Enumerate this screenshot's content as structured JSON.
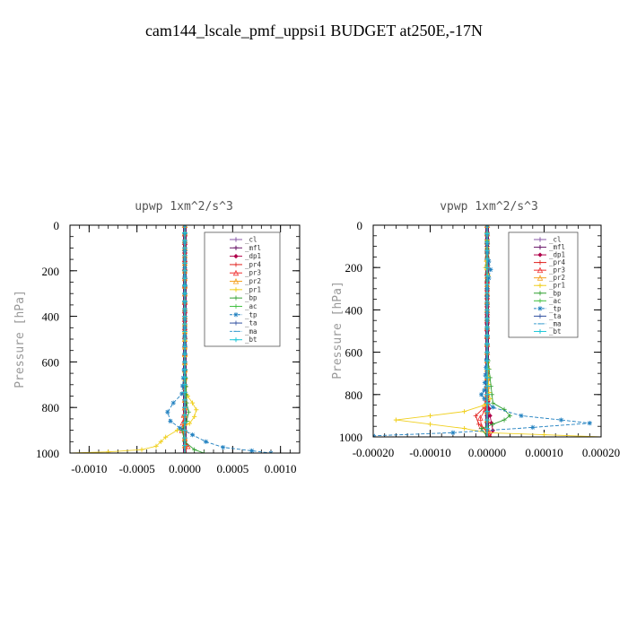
{
  "figure": {
    "title": "cam144_lscale_pmf_uppsi1  BUDGET at250E,-17N"
  },
  "chart_data": [
    {
      "type": "line",
      "title": "upwp   1xm^2/s^3",
      "ylabel": "Pressure [hPa]",
      "xlabel": "",
      "xlim": [
        -0.0012,
        0.0012
      ],
      "ylim": [
        1000,
        0
      ],
      "y_inverted": true,
      "xticks": [
        "-0.0010",
        "-0.0005",
        "0.0000",
        "0.0005",
        "0.0010"
      ],
      "xtick_values": [
        -0.001,
        -0.0005,
        0,
        0.0005,
        0.001
      ],
      "yticks": [
        "0",
        "200",
        "400",
        "600",
        "800",
        "1000"
      ],
      "ytick_values": [
        0,
        200,
        400,
        600,
        800,
        1000
      ],
      "legend": {
        "position": "top-right"
      },
      "series": [
        {
          "name": "_cl",
          "color": "#8a5aa8",
          "marker": "bar",
          "x": [
            0,
            0,
            0,
            0,
            0,
            0,
            0,
            0,
            0,
            0,
            0
          ],
          "y": [
            0,
            100,
            200,
            300,
            400,
            500,
            600,
            700,
            800,
            900,
            1000
          ]
        },
        {
          "name": "_mfl",
          "color": "#6b1a6b",
          "marker": "bar",
          "x": [
            0,
            0,
            0,
            0,
            0,
            0,
            0,
            0,
            0,
            0,
            0
          ],
          "y": [
            0,
            100,
            200,
            300,
            400,
            500,
            600,
            700,
            800,
            900,
            1000
          ]
        },
        {
          "name": "_dp1",
          "color": "#b0004a",
          "marker": "diamond",
          "x": [
            0,
            0,
            0,
            0,
            0,
            0,
            0,
            0,
            0,
            0,
            0
          ],
          "y": [
            0,
            100,
            200,
            300,
            400,
            500,
            600,
            700,
            800,
            900,
            1000
          ]
        },
        {
          "name": "_pr4",
          "color": "#e0201c",
          "marker": "plus",
          "x": [
            0,
            0,
            0,
            0,
            0,
            -2e-05,
            2e-05,
            0
          ],
          "y": [
            0,
            200,
            400,
            600,
            800,
            900,
            970,
            1000
          ]
        },
        {
          "name": "_pr3",
          "color": "#f03030",
          "marker": "tri",
          "x": [
            0,
            0,
            0,
            0,
            -3e-05,
            3e-05,
            0
          ],
          "y": [
            0,
            300,
            600,
            800,
            900,
            970,
            1000
          ]
        },
        {
          "name": "_pr2",
          "color": "#f4a020",
          "marker": "tri",
          "x": [
            0,
            0,
            0,
            0,
            0,
            0
          ],
          "y": [
            0,
            200,
            400,
            600,
            800,
            1000
          ]
        },
        {
          "name": "_pr1",
          "color": "#f0d020",
          "marker": "bar",
          "x": [
            0,
            0,
            0,
            0,
            3e-05,
            8e-05,
            0.00012,
            0.0001,
            5e-05,
            -8e-05,
            -0.0002,
            -0.00025,
            -0.0003,
            -0.00045,
            -0.0008,
            -0.0012
          ],
          "y": [
            0,
            200,
            400,
            720,
            750,
            780,
            810,
            840,
            870,
            900,
            930,
            950,
            970,
            985,
            995,
            1000
          ]
        },
        {
          "name": "_bp",
          "color": "#30a030",
          "marker": "plus",
          "x": [
            0,
            0,
            0,
            2e-05,
            4e-05,
            2e-05,
            -3e-05,
            0,
            0.0001,
            0.0002
          ],
          "y": [
            0,
            300,
            600,
            780,
            820,
            860,
            900,
            950,
            985,
            1000
          ]
        },
        {
          "name": "_ac",
          "color": "#40c040",
          "marker": "plus",
          "x": [
            0,
            0,
            0,
            0,
            0,
            0
          ],
          "y": [
            0,
            200,
            400,
            600,
            800,
            1000
          ]
        },
        {
          "name": "_tp",
          "color": "#2080c0",
          "marker": "star",
          "x": [
            0,
            0,
            0,
            -3e-05,
            -0.00012,
            -0.00018,
            -0.00015,
            -5e-05,
            8e-05,
            0.00022,
            0.0004,
            0.0007,
            0.0009
          ],
          "y": [
            0,
            300,
            600,
            740,
            780,
            820,
            860,
            890,
            920,
            950,
            975,
            990,
            1000
          ]
        },
        {
          "name": "_ta",
          "color": "#3050a0",
          "marker": "plus",
          "x": [
            0,
            0,
            0,
            0,
            0,
            0
          ],
          "y": [
            0,
            200,
            400,
            600,
            800,
            1000
          ]
        },
        {
          "name": "_ma",
          "color": "#40a0d0",
          "marker": "dash",
          "x": [
            0,
            0,
            0,
            0,
            0,
            0
          ],
          "y": [
            0,
            200,
            400,
            600,
            800,
            1000
          ]
        },
        {
          "name": "_bt",
          "color": "#20c8d8",
          "marker": "bar",
          "x": [
            0,
            0,
            0,
            0,
            0,
            0
          ],
          "y": [
            0,
            200,
            400,
            600,
            800,
            1000
          ]
        }
      ]
    },
    {
      "type": "line",
      "title": "vpwp   1xm^2/s^3",
      "ylabel": "Pressure [hPa]",
      "xlabel": "",
      "xlim": [
        -0.0002,
        0.0002
      ],
      "ylim": [
        1000,
        0
      ],
      "y_inverted": true,
      "xticks": [
        "-0.00020",
        "-0.00010",
        "0.00000",
        "0.00010",
        "0.00020"
      ],
      "xtick_values": [
        -0.0002,
        -0.0001,
        0,
        0.0001,
        0.0002
      ],
      "yticks": [
        "0",
        "200",
        "400",
        "600",
        "800",
        "1000"
      ],
      "ytick_values": [
        0,
        200,
        400,
        600,
        800,
        1000
      ],
      "legend": {
        "position": "top-right"
      },
      "series": [
        {
          "name": "_cl",
          "color": "#8a5aa8",
          "marker": "bar",
          "x": [
            0,
            0,
            0,
            0,
            0,
            0,
            0,
            0,
            0,
            0,
            0
          ],
          "y": [
            0,
            100,
            200,
            300,
            400,
            500,
            600,
            700,
            800,
            900,
            1000
          ]
        },
        {
          "name": "_mfl",
          "color": "#6b1a6b",
          "marker": "bar",
          "x": [
            0,
            0,
            0,
            0,
            0,
            0,
            0,
            0,
            0,
            0,
            0
          ],
          "y": [
            0,
            100,
            200,
            300,
            400,
            500,
            600,
            700,
            800,
            900,
            1000
          ]
        },
        {
          "name": "_dp1",
          "color": "#b0004a",
          "marker": "diamond",
          "x": [
            0,
            0,
            0,
            0,
            0,
            5e-06,
            1e-05,
            5e-06
          ],
          "y": [
            0,
            200,
            400,
            600,
            800,
            900,
            970,
            1000
          ]
        },
        {
          "name": "_pr4",
          "color": "#e0201c",
          "marker": "plus",
          "x": [
            0,
            0,
            0,
            0,
            -5e-06,
            -2e-05,
            -1.5e-05,
            5e-06,
            0
          ],
          "y": [
            0,
            300,
            600,
            800,
            860,
            900,
            940,
            980,
            1000
          ]
        },
        {
          "name": "_pr3",
          "color": "#f03030",
          "marker": "tri",
          "x": [
            0,
            0,
            0,
            0,
            -3e-06,
            -1.2e-05,
            -1e-05,
            3e-06,
            0
          ],
          "y": [
            0,
            300,
            600,
            800,
            870,
            910,
            950,
            985,
            1000
          ]
        },
        {
          "name": "_pr2",
          "color": "#f4a020",
          "marker": "tri",
          "x": [
            0,
            0,
            0,
            0,
            0,
            0
          ],
          "y": [
            0,
            200,
            400,
            600,
            800,
            1000
          ]
        },
        {
          "name": "_pr1",
          "color": "#f0d020",
          "marker": "bar",
          "x": [
            0,
            0,
            -3e-06,
            2e-06,
            0,
            0,
            3e-06,
            5e-06,
            -5e-06,
            -4e-05,
            -0.0001,
            -0.00016,
            -0.0001,
            -4e-05,
            0,
            0.0001,
            0.0002
          ],
          "y": [
            0,
            140,
            200,
            240,
            280,
            600,
            790,
            820,
            850,
            880,
            900,
            920,
            940,
            960,
            980,
            990,
            1000
          ]
        },
        {
          "name": "_bp",
          "color": "#30a030",
          "marker": "plus",
          "x": [
            0,
            0,
            0,
            1e-05,
            3e-05,
            4e-05,
            3e-05,
            1e-05,
            -1e-05,
            0
          ],
          "y": [
            0,
            300,
            600,
            840,
            870,
            900,
            920,
            940,
            960,
            1000
          ]
        },
        {
          "name": "_ac",
          "color": "#40c040",
          "marker": "plus",
          "x": [
            0,
            0,
            0,
            0,
            0,
            0
          ],
          "y": [
            0,
            200,
            400,
            600,
            800,
            1000
          ]
        },
        {
          "name": "_tp",
          "color": "#2080c0",
          "marker": "star",
          "x": [
            0,
            0,
            3e-06,
            6e-06,
            3e-06,
            0,
            0,
            -5e-06,
            -1e-05,
            -5e-06,
            1e-05,
            6e-05,
            0.00013,
            0.00018,
            8e-05,
            -6e-05,
            -0.0002
          ],
          "y": [
            0,
            130,
            170,
            210,
            250,
            300,
            600,
            780,
            800,
            820,
            860,
            900,
            920,
            935,
            955,
            980,
            995
          ]
        },
        {
          "name": "_ta",
          "color": "#3050a0",
          "marker": "plus",
          "x": [
            0,
            0,
            0,
            0,
            0,
            0
          ],
          "y": [
            0,
            200,
            400,
            600,
            800,
            1000
          ]
        },
        {
          "name": "_ma",
          "color": "#40a0d0",
          "marker": "dash",
          "x": [
            0,
            0,
            0,
            0,
            0,
            0
          ],
          "y": [
            0,
            200,
            400,
            600,
            800,
            1000
          ]
        },
        {
          "name": "_bt",
          "color": "#20c8d8",
          "marker": "bar",
          "x": [
            0,
            0,
            0,
            0,
            0,
            0
          ],
          "y": [
            0,
            200,
            400,
            600,
            800,
            1000
          ]
        }
      ]
    }
  ]
}
